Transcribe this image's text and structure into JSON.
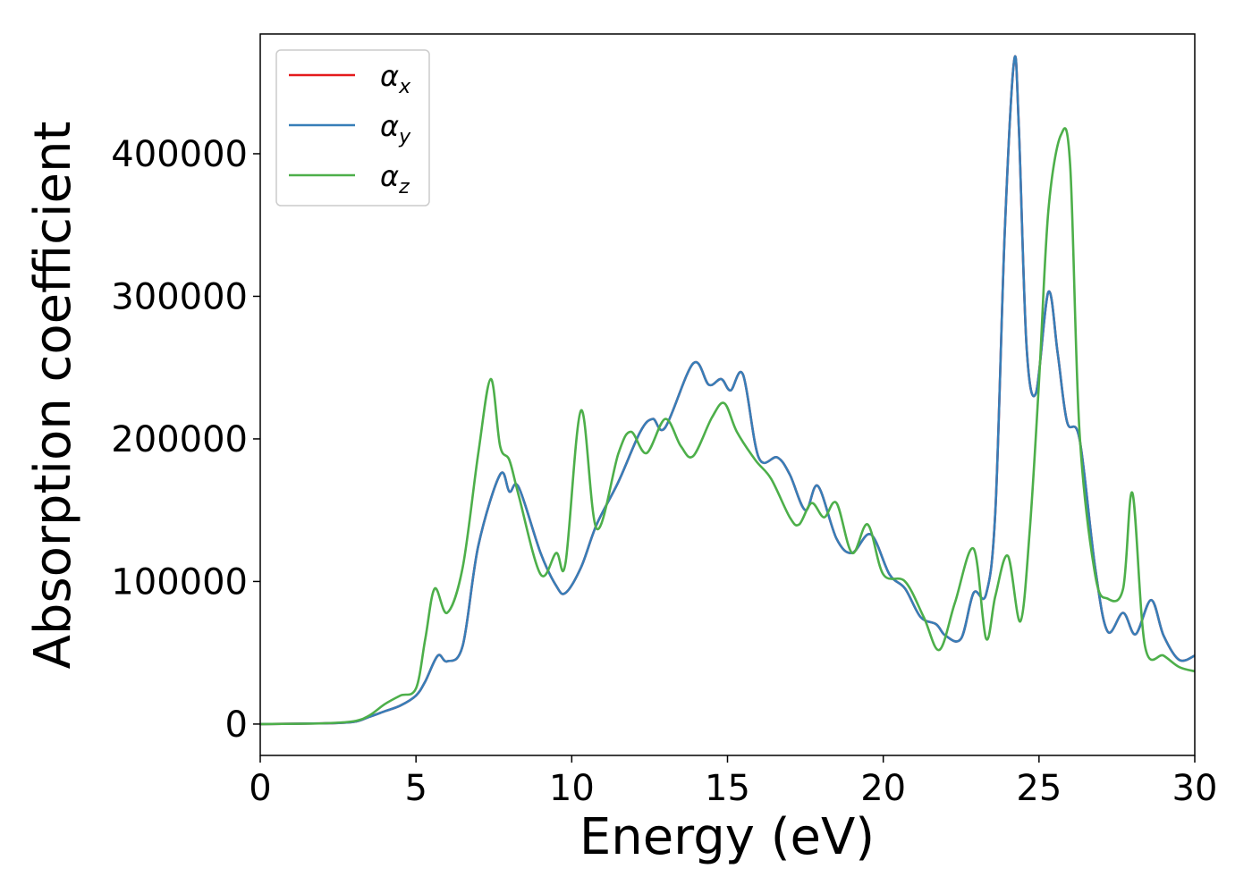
{
  "chart_data": {
    "type": "line",
    "title": "",
    "xlabel": "Energy (eV)",
    "ylabel": "Absorption coefficient",
    "xlim": [
      0,
      30
    ],
    "ylim": [
      -22000,
      484000
    ],
    "xticks": [
      "0",
      "5",
      "10",
      "15",
      "20",
      "25",
      "30"
    ],
    "yticks": [
      "0",
      "100000",
      "200000",
      "300000",
      "400000"
    ],
    "grid": false,
    "legend_position": "top-left",
    "series": [
      {
        "name": "α",
        "sub": "x",
        "color": "#e41a1c",
        "x": [
          0,
          2,
          3,
          3.5,
          4,
          4.5,
          5,
          5.3,
          5.7,
          6,
          6.5,
          7,
          7.7,
          8,
          8.3,
          9,
          9.5,
          9.8,
          10.3,
          10.8,
          11.5,
          12.2,
          12.6,
          13,
          13.9,
          14.4,
          14.8,
          15.1,
          15.5,
          16,
          16.6,
          17,
          17.5,
          17.9,
          18.5,
          19,
          19.6,
          20.2,
          20.7,
          21.2,
          21.7,
          22,
          22.5,
          22.9,
          23.3,
          23.6,
          23.9,
          24.2,
          24.35,
          24.6,
          24.9,
          25.3,
          25.6,
          25.9,
          26.3,
          26.8,
          27.2,
          27.7,
          28.1,
          28.6,
          29,
          29.5,
          30
        ],
        "y": [
          0,
          500,
          1500,
          5000,
          9000,
          13000,
          20000,
          30000,
          48000,
          44000,
          55000,
          125000,
          175000,
          163000,
          166000,
          120000,
          97000,
          92000,
          110000,
          140000,
          170000,
          205000,
          214000,
          208000,
          253000,
          238000,
          242000,
          234000,
          245000,
          187000,
          187000,
          175000,
          150000,
          167000,
          130000,
          120000,
          133000,
          105000,
          95000,
          75000,
          70000,
          62000,
          60000,
          92000,
          91000,
          150000,
          345000,
          465000,
          420000,
          265000,
          232000,
          303000,
          260000,
          212000,
          200000,
          110000,
          65000,
          78000,
          63000,
          87000,
          62000,
          45000,
          48000
        ]
      },
      {
        "name": "α",
        "sub": "y",
        "color": "#377eb8",
        "x": [
          0,
          2,
          3,
          3.5,
          4,
          4.5,
          5,
          5.3,
          5.7,
          6,
          6.5,
          7,
          7.7,
          8,
          8.3,
          9,
          9.5,
          9.8,
          10.3,
          10.8,
          11.5,
          12.2,
          12.6,
          13,
          13.9,
          14.4,
          14.8,
          15.1,
          15.5,
          16,
          16.6,
          17,
          17.5,
          17.9,
          18.5,
          19,
          19.6,
          20.2,
          20.7,
          21.2,
          21.7,
          22,
          22.5,
          22.9,
          23.3,
          23.6,
          23.9,
          24.2,
          24.35,
          24.6,
          24.9,
          25.3,
          25.6,
          25.9,
          26.3,
          26.8,
          27.2,
          27.7,
          28.1,
          28.6,
          29,
          29.5,
          30
        ],
        "y": [
          0,
          500,
          1500,
          5000,
          9000,
          13000,
          20000,
          30000,
          48000,
          44000,
          55000,
          125000,
          175000,
          163000,
          166000,
          120000,
          97000,
          92000,
          110000,
          140000,
          170000,
          205000,
          214000,
          208000,
          253000,
          238000,
          242000,
          234000,
          245000,
          187000,
          187000,
          175000,
          150000,
          167000,
          130000,
          120000,
          133000,
          105000,
          95000,
          75000,
          70000,
          62000,
          60000,
          92000,
          91000,
          150000,
          345000,
          465000,
          420000,
          265000,
          232000,
          303000,
          260000,
          212000,
          200000,
          110000,
          65000,
          78000,
          63000,
          87000,
          62000,
          45000,
          48000
        ]
      },
      {
        "name": "α",
        "sub": "z",
        "color": "#4daf4a",
        "x": [
          0,
          2,
          3,
          3.5,
          4,
          4.5,
          5,
          5.3,
          5.6,
          6,
          6.5,
          7,
          7.4,
          7.7,
          8,
          8.3,
          9,
          9.5,
          9.8,
          10.3,
          10.8,
          11.5,
          11.9,
          12.4,
          13,
          13.5,
          13.9,
          14.5,
          14.9,
          15.3,
          15.9,
          16.4,
          17,
          17.3,
          17.7,
          18.1,
          18.5,
          19,
          19.5,
          20,
          20.7,
          21.3,
          21.8,
          22.3,
          22.9,
          23.3,
          23.6,
          24,
          24.4,
          24.7,
          25,
          25.3,
          25.7,
          26,
          26.3,
          26.8,
          27.2,
          27.7,
          28,
          28.4,
          29,
          29.5,
          30
        ],
        "y": [
          0,
          500,
          2000,
          6000,
          14000,
          20000,
          25000,
          60000,
          95000,
          78000,
          110000,
          190000,
          242000,
          195000,
          185000,
          160000,
          105000,
          120000,
          113000,
          220000,
          137000,
          190000,
          205000,
          190000,
          214000,
          195000,
          188000,
          215000,
          225000,
          205000,
          185000,
          172000,
          145000,
          140000,
          155000,
          145000,
          155000,
          120000,
          140000,
          105000,
          100000,
          75000,
          52000,
          85000,
          123000,
          60000,
          90000,
          118000,
          72000,
          135000,
          240000,
          360000,
          413000,
          392000,
          205000,
          105000,
          88000,
          95000,
          162000,
          55000,
          48000,
          40000,
          37000
        ]
      }
    ]
  }
}
